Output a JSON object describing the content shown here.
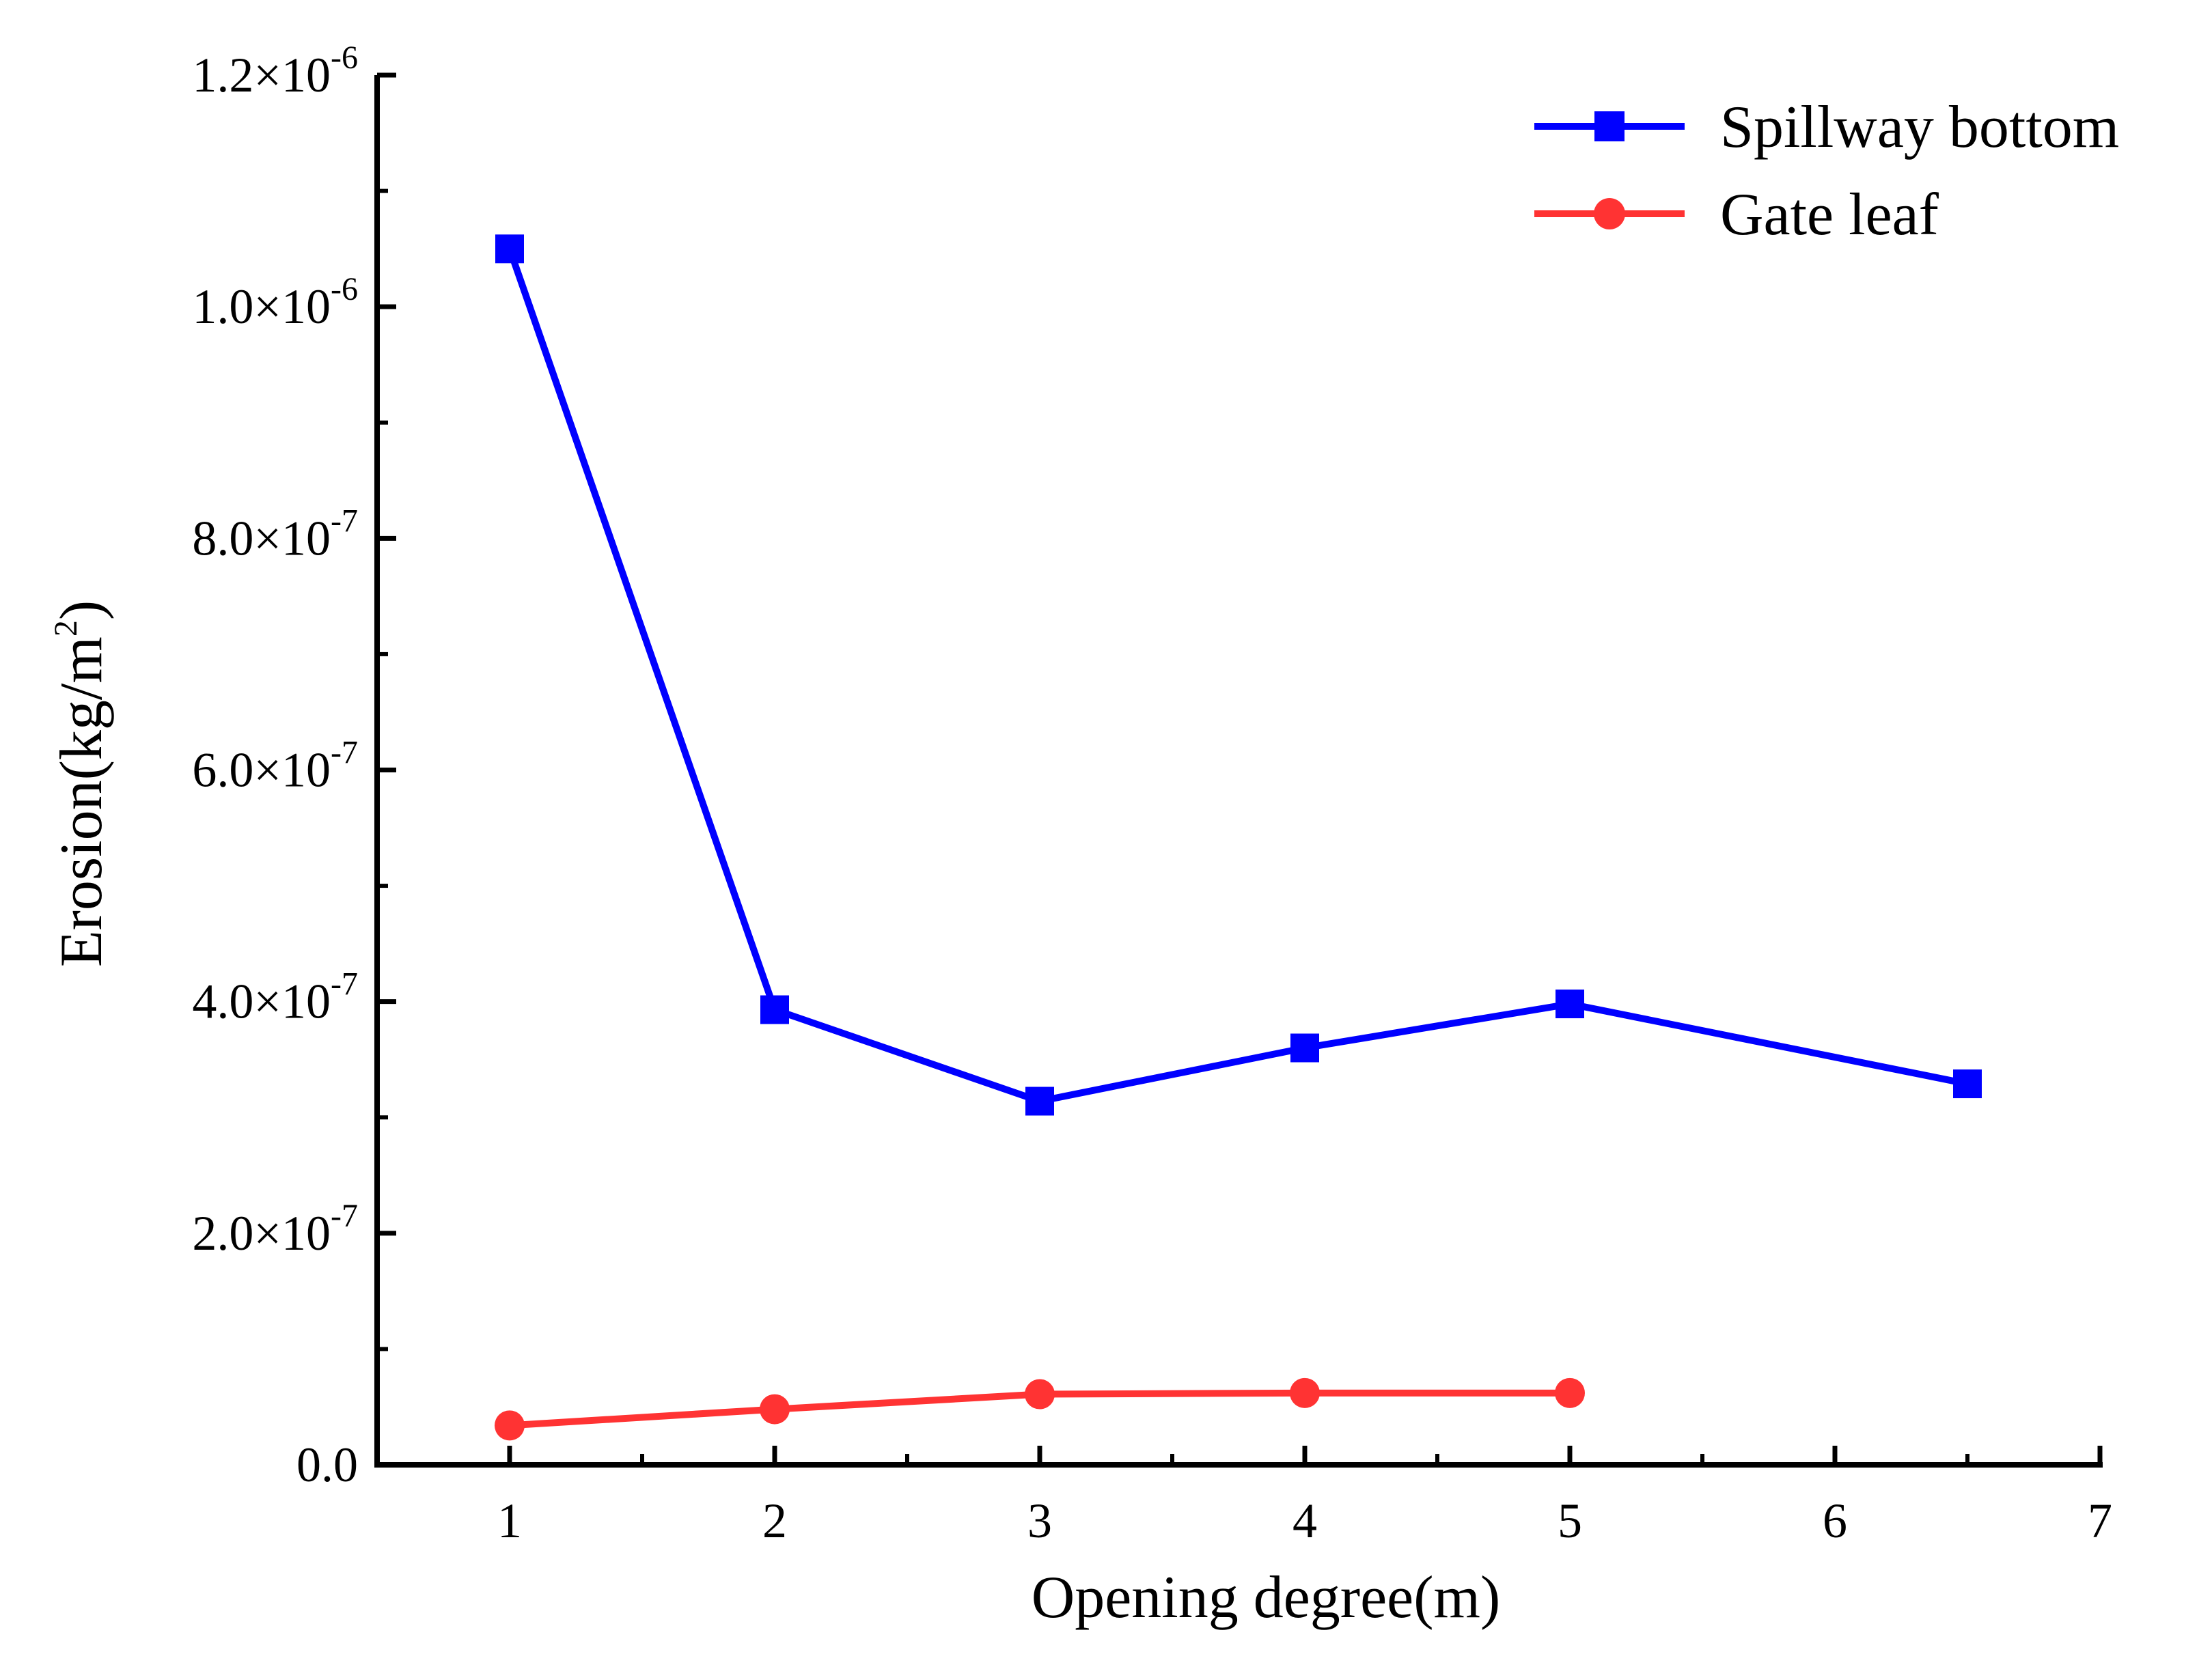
{
  "chart_data": {
    "type": "line",
    "title": "",
    "xlabel": "Opening degree(m)",
    "ylabel": "Erosion(kg/m2)",
    "ylabel_parts": {
      "base": "Erosion(kg/m",
      "sup": "2",
      "close": ")"
    },
    "xlim": [
      0.5,
      7
    ],
    "ylim": [
      0,
      1.2e-06
    ],
    "x_ticks": [
      1,
      2,
      3,
      4,
      5,
      6,
      7
    ],
    "y_ticks": [
      {
        "value": 0,
        "mantissa": "0.0",
        "times": "",
        "exp": ""
      },
      {
        "value": 2e-07,
        "mantissa": "2.0",
        "times": "×10",
        "exp": "-7"
      },
      {
        "value": 4e-07,
        "mantissa": "4.0",
        "times": "×10",
        "exp": "-7"
      },
      {
        "value": 6e-07,
        "mantissa": "6.0",
        "times": "×10",
        "exp": "-7"
      },
      {
        "value": 8e-07,
        "mantissa": "8.0",
        "times": "×10",
        "exp": "-7"
      },
      {
        "value": 1e-06,
        "mantissa": "1.0",
        "times": "×10",
        "exp": "-6"
      },
      {
        "value": 1.2e-06,
        "mantissa": "1.2",
        "times": "×10",
        "exp": "-6"
      }
    ],
    "legend_position": "top-right",
    "series": [
      {
        "name": "Spillway bottom",
        "color": "#0000ff",
        "marker": "square",
        "x": [
          1,
          2,
          3,
          4,
          5,
          6.5
        ],
        "values": [
          1.05e-06,
          3.93e-07,
          3.14e-07,
          3.6e-07,
          3.98e-07,
          3.29e-07
        ]
      },
      {
        "name": "Gate leaf",
        "color": "#ff3333",
        "marker": "circle",
        "x": [
          1,
          2,
          3,
          4,
          5
        ],
        "values": [
          3.4e-08,
          4.8e-08,
          6.1e-08,
          6.2e-08,
          6.2e-08
        ]
      }
    ]
  }
}
